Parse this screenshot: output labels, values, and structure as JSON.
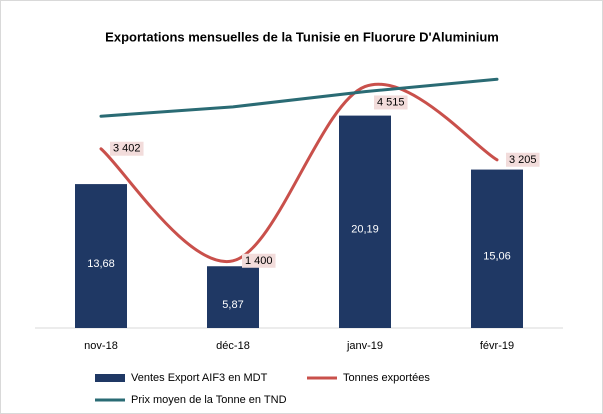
{
  "chart_data": {
    "type": "combo",
    "title": "Exportations mensuelles de la Tunisie en Fluorure D'Aluminium",
    "categories": [
      "nov-18",
      "déc-18",
      "janv-19",
      "févr-19"
    ],
    "series": [
      {
        "name": "Ventes Export AIF3 en MDT",
        "type": "bar",
        "color": "#1f3864",
        "axis": "y",
        "values": [
          13.68,
          5.87,
          20.19,
          15.06
        ],
        "value_labels": [
          "13,68",
          "5,87",
          "20,19",
          "15,06"
        ]
      },
      {
        "name": "Tonnes exportées",
        "type": "line",
        "smooth": true,
        "color": "#c9504b",
        "axis": "y2",
        "values": [
          3402,
          1400,
          4515,
          3205
        ],
        "value_labels": [
          "3 402",
          "1 400",
          "4 515",
          "3 205"
        ]
      },
      {
        "name": "Prix moyen de la Tonne en TND",
        "type": "line",
        "color": "#2a6b74",
        "axis": "y3",
        "values": [
          4021,
          4193,
          4472,
          4699
        ]
      }
    ],
    "ylim": [
      0,
      25
    ],
    "y2lim": [
      200,
      4900
    ],
    "y3lim": [
      140,
      4960
    ],
    "grid": false,
    "legend": "bottom"
  }
}
